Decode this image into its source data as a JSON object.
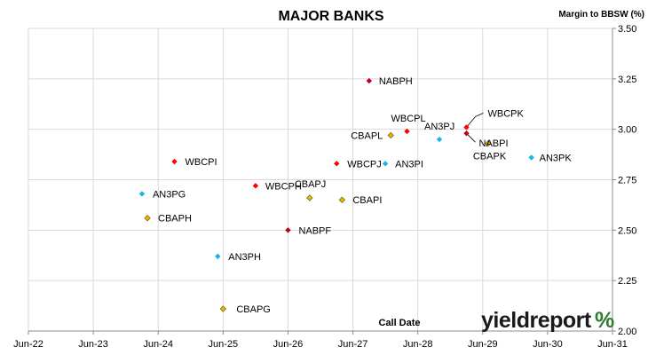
{
  "chart_data": {
    "type": "scatter",
    "title": "MAJOR BANKS",
    "ylabel": "Margin to BBSW (%)",
    "xlabel": "Call Date",
    "x_ticks": [
      "Jun-22",
      "Jun-23",
      "Jun-24",
      "Jun-25",
      "Jun-26",
      "Jun-27",
      "Jun-28",
      "Jun-29",
      "Jun-30",
      "Jun-31"
    ],
    "xlim": [
      "Jun-22",
      "Jun-31"
    ],
    "ylim": [
      2.0,
      3.5
    ],
    "y_ticks": [
      "2.00",
      "2.25",
      "2.50",
      "2.75",
      "3.00",
      "3.25",
      "3.50"
    ],
    "grid": true,
    "colors": {
      "WBC": "#ff0000",
      "NAB": "#c0001a",
      "CBA": "#e6b800",
      "ANZ": "#19b5e6"
    },
    "points": [
      {
        "label": "NABPH",
        "x": "2027-09",
        "y": 3.24,
        "issuer": "NAB"
      },
      {
        "label": "WBCPL",
        "x": "2028-04",
        "y": 2.99,
        "issuer": "WBC"
      },
      {
        "label": "AN3PJ",
        "x": "2028-10",
        "y": 2.95,
        "issuer": "ANZ"
      },
      {
        "label": "WBCPK",
        "x": "2029-03",
        "y": 3.01,
        "issuer": "WBC"
      },
      {
        "label": "CBAPL",
        "x": "2028-01",
        "y": 2.97,
        "issuer": "CBA"
      },
      {
        "label": "NABPI",
        "x": "2029-03",
        "y": 2.98,
        "issuer": "NAB"
      },
      {
        "label": "CBAPK",
        "x": "2029-07",
        "y": 2.93,
        "issuer": "CBA"
      },
      {
        "label": "AN3PK",
        "x": "2030-03",
        "y": 2.86,
        "issuer": "ANZ"
      },
      {
        "label": "WBCPI",
        "x": "2024-09",
        "y": 2.84,
        "issuer": "WBC"
      },
      {
        "label": "WBCPJ",
        "x": "2027-03",
        "y": 2.83,
        "issuer": "WBC"
      },
      {
        "label": "AN3PI",
        "x": "2027-12",
        "y": 2.83,
        "issuer": "ANZ"
      },
      {
        "label": "WBCPH",
        "x": "2025-12",
        "y": 2.72,
        "issuer": "WBC"
      },
      {
        "label": "AN3PG",
        "x": "2024-03",
        "y": 2.68,
        "issuer": "ANZ"
      },
      {
        "label": "CBAPJ",
        "x": "2026-10",
        "y": 2.66,
        "issuer": "CBA"
      },
      {
        "label": "CBAPI",
        "x": "2027-04",
        "y": 2.65,
        "issuer": "CBA"
      },
      {
        "label": "CBAPH",
        "x": "2024-04",
        "y": 2.56,
        "issuer": "CBA"
      },
      {
        "label": "NABPF",
        "x": "2026-06",
        "y": 2.5,
        "issuer": "NAB"
      },
      {
        "label": "AN3PH",
        "x": "2025-05",
        "y": 2.37,
        "issuer": "ANZ"
      },
      {
        "label": "CBAPG",
        "x": "2025-06",
        "y": 2.11,
        "issuer": "CBA"
      }
    ]
  },
  "branding": {
    "name": "yieldreport",
    "symbol": "%",
    "symbol_color": "#2e7d32"
  }
}
